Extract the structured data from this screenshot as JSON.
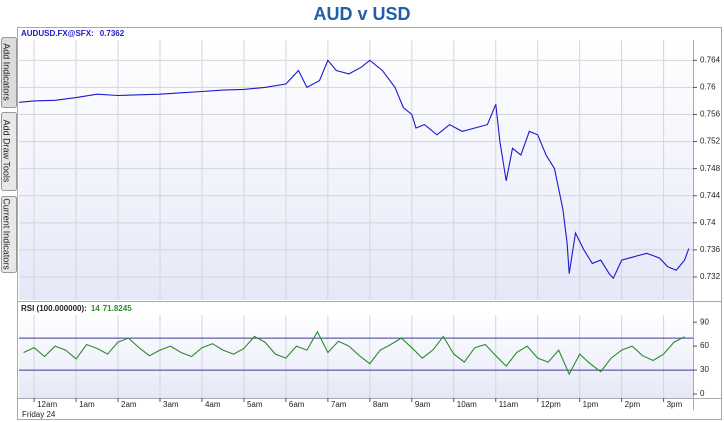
{
  "title": "AUD v USD",
  "tabs": [
    "Add Indicators",
    "Add Draw Tools",
    "Current Indicators"
  ],
  "chart_data": [
    {
      "type": "line",
      "label": "AUDUSD.FX@SFX:",
      "last_value": 0.7362,
      "xlim": [
        -0.36,
        15.7
      ],
      "ylim": [
        0.7286,
        0.767
      ],
      "yticks": [
        0.732,
        0.736,
        0.74,
        0.744,
        0.748,
        0.752,
        0.756,
        0.76,
        0.764
      ],
      "grid": true,
      "x": [
        -0.36,
        0,
        0.5,
        1,
        1.5,
        2,
        2.5,
        3,
        3.5,
        4,
        4.5,
        5,
        5.5,
        6,
        6.3,
        6.5,
        6.8,
        7,
        7.2,
        7.5,
        7.8,
        8,
        8.3,
        8.6,
        8.8,
        9,
        9.1,
        9.3,
        9.6,
        9.9,
        10.2,
        10.5,
        10.8,
        11,
        11.1,
        11.25,
        11.4,
        11.6,
        11.8,
        12,
        12.2,
        12.4,
        12.6,
        12.7,
        12.75,
        12.9,
        13.1,
        13.3,
        13.5,
        13.7,
        13.8,
        14,
        14.3,
        14.6,
        14.9,
        15.1,
        15.3,
        15.5,
        15.6
      ],
      "series": [
        {
          "name": "AUDUSD",
          "color": "#1a1acc",
          "values": [
            0.7578,
            0.758,
            0.7581,
            0.7585,
            0.759,
            0.7588,
            0.7589,
            0.759,
            0.7592,
            0.7594,
            0.7596,
            0.7597,
            0.76,
            0.7605,
            0.7625,
            0.76,
            0.761,
            0.764,
            0.7625,
            0.762,
            0.763,
            0.764,
            0.7625,
            0.76,
            0.757,
            0.756,
            0.754,
            0.7545,
            0.753,
            0.7545,
            0.7535,
            0.754,
            0.7545,
            0.7575,
            0.752,
            0.7462,
            0.751,
            0.75,
            0.7535,
            0.753,
            0.75,
            0.748,
            0.742,
            0.737,
            0.7325,
            0.7385,
            0.736,
            0.734,
            0.7345,
            0.7325,
            0.7318,
            0.7345,
            0.735,
            0.7355,
            0.7348,
            0.7335,
            0.733,
            0.7345,
            0.7362
          ]
        }
      ]
    },
    {
      "type": "line",
      "label": "RSI (100.000000):",
      "period": 14,
      "last_value": 71.8245,
      "xlim": [
        -0.36,
        15.7
      ],
      "ylim": [
        -5,
        99
      ],
      "yticks": [
        0,
        30,
        60,
        90
      ],
      "levels": [
        30,
        70
      ],
      "x_label": "Friday 24",
      "xticks": [
        {
          "value": 0,
          "label": "12am"
        },
        {
          "value": 1,
          "label": "1am"
        },
        {
          "value": 2,
          "label": "2am"
        },
        {
          "value": 3,
          "label": "3am"
        },
        {
          "value": 4,
          "label": "4am"
        },
        {
          "value": 5,
          "label": "5am"
        },
        {
          "value": 6,
          "label": "6am"
        },
        {
          "value": 7,
          "label": "7am"
        },
        {
          "value": 8,
          "label": "8am"
        },
        {
          "value": 9,
          "label": "9am"
        },
        {
          "value": 10,
          "label": "10am"
        },
        {
          "value": 11,
          "label": "11am"
        },
        {
          "value": 12,
          "label": "12pm"
        },
        {
          "value": 13,
          "label": "1pm"
        },
        {
          "value": 14,
          "label": "2pm"
        },
        {
          "value": 15,
          "label": "3pm"
        }
      ],
      "x": [
        -0.25,
        0,
        0.25,
        0.5,
        0.75,
        1,
        1.25,
        1.5,
        1.75,
        2,
        2.25,
        2.5,
        2.75,
        3,
        3.25,
        3.5,
        3.75,
        4,
        4.25,
        4.5,
        4.75,
        5,
        5.25,
        5.5,
        5.75,
        6,
        6.25,
        6.5,
        6.75,
        7,
        7.25,
        7.5,
        7.75,
        8,
        8.25,
        8.5,
        8.75,
        9,
        9.25,
        9.5,
        9.75,
        10,
        10.25,
        10.5,
        10.75,
        11,
        11.25,
        11.5,
        11.75,
        12,
        12.25,
        12.5,
        12.75,
        13,
        13.25,
        13.5,
        13.75,
        14,
        14.25,
        14.5,
        14.75,
        15,
        15.25,
        15.5
      ],
      "series": [
        {
          "name": "RSI",
          "color": "#2e8b2e",
          "values": [
            52,
            58,
            47,
            60,
            55,
            44,
            62,
            57,
            50,
            65,
            70,
            58,
            48,
            55,
            60,
            52,
            47,
            58,
            63,
            55,
            50,
            57,
            72,
            65,
            50,
            45,
            60,
            55,
            78,
            52,
            66,
            60,
            48,
            38,
            55,
            62,
            70,
            58,
            45,
            55,
            72,
            50,
            40,
            58,
            62,
            48,
            35,
            52,
            60,
            45,
            40,
            55,
            25,
            50,
            38,
            28,
            45,
            55,
            60,
            48,
            42,
            50,
            65,
            71.8
          ]
        }
      ]
    }
  ]
}
